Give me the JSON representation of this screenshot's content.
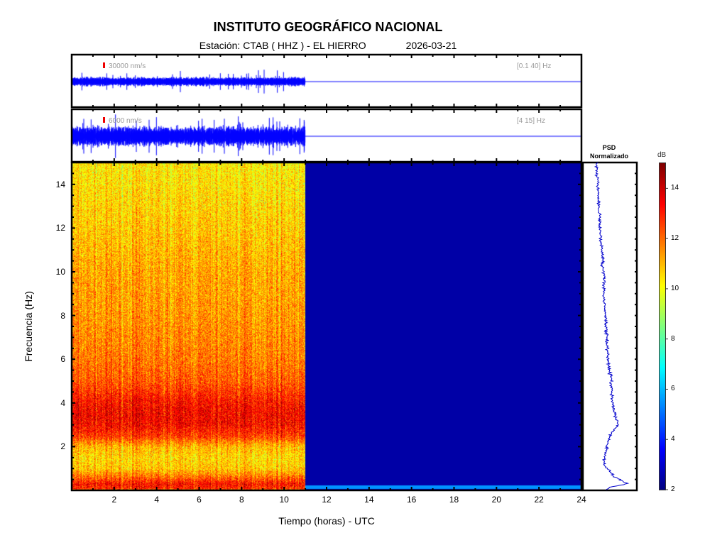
{
  "header": {
    "title": "INSTITUTO GEOGRÁFICO NACIONAL",
    "station": "Estación:  CTAB ( HHZ ) - EL HIERRO",
    "date": "2026-03-21"
  },
  "traces": [
    {
      "scale": "30000 nm/s",
      "band": "[0.1 40] Hz",
      "color": "#0000ff",
      "data_end_hour": 11
    },
    {
      "scale": "6000 nm/s",
      "band": "[4 15] Hz",
      "color": "#0000ff",
      "data_end_hour": 11
    }
  ],
  "chart_data": {
    "type": "heatmap",
    "xlabel": "Tiempo (horas) - UTC",
    "ylabel": "Frecuencia  (Hz)",
    "xlim": [
      0,
      24
    ],
    "ylim": [
      0,
      15
    ],
    "xticks": [
      2,
      4,
      6,
      8,
      10,
      12,
      14,
      16,
      18,
      20,
      22,
      24
    ],
    "yticks": [
      2,
      4,
      6,
      8,
      10,
      12,
      14
    ],
    "data_end_hour": 11,
    "colormap": "jet",
    "colorbar": {
      "label": "dB",
      "range": [
        2,
        15
      ],
      "ticks": [
        2,
        4,
        6,
        8,
        10,
        12,
        14
      ]
    },
    "spectrum_db_profile": {
      "freq_hz": [
        0,
        0.1,
        0.3,
        0.6,
        1,
        1.5,
        2,
        2.5,
        3,
        3.5,
        4,
        4.5,
        5,
        6,
        8,
        10,
        12,
        15
      ],
      "db": [
        11,
        12.8,
        13.2,
        12,
        10.8,
        10.6,
        11,
        12.6,
        13.3,
        13.4,
        13.2,
        12.7,
        12.2,
        11.8,
        11.4,
        11.2,
        10.8,
        10.3
      ]
    },
    "no_data_db": 2,
    "psd": {
      "title_line1": "PSD",
      "title_line2": "Normalizado",
      "freq_hz": [
        0.05,
        0.15,
        0.3,
        0.6,
        1.2,
        2,
        2.5,
        3,
        3.5,
        4,
        5,
        6,
        8,
        10,
        12,
        15
      ],
      "value_norm": [
        0.45,
        0.5,
        0.82,
        0.6,
        0.38,
        0.45,
        0.5,
        0.65,
        0.6,
        0.55,
        0.52,
        0.47,
        0.41,
        0.38,
        0.32,
        0.25
      ]
    }
  }
}
